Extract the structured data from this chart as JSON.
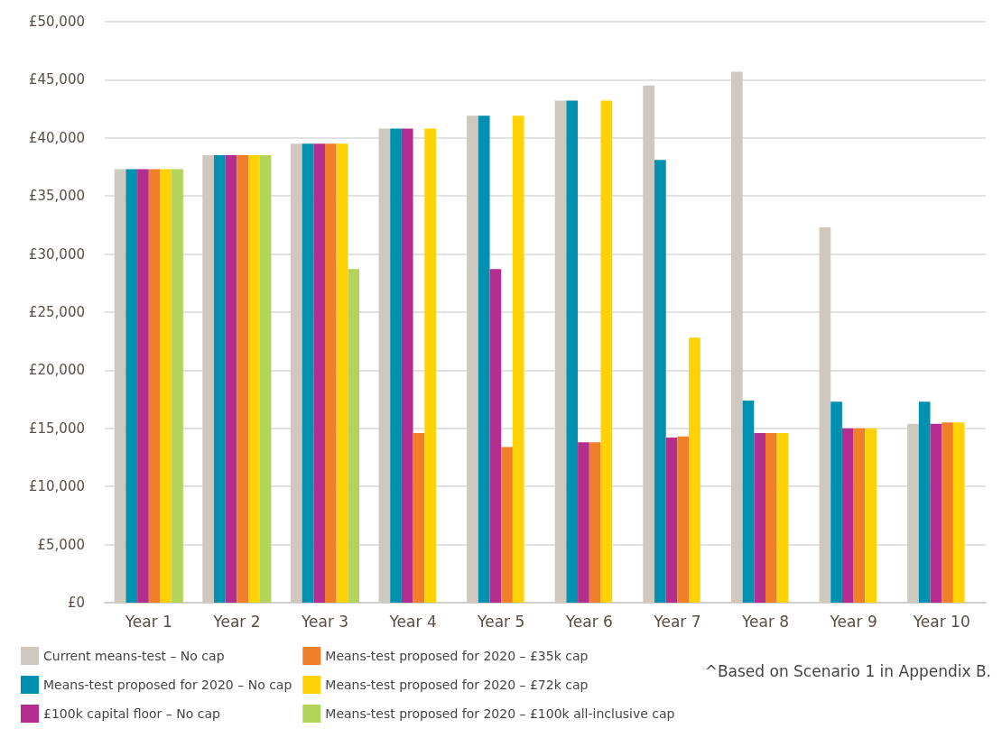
{
  "chart_data": {
    "type": "bar",
    "categories": [
      "Year 1",
      "Year 2",
      "Year 3",
      "Year 4",
      "Year 5",
      "Year 6",
      "Year 7",
      "Year 8",
      "Year 9",
      "Year 10"
    ],
    "series": [
      {
        "name": "Current means-test – No cap",
        "color": "#cfc8bf",
        "values": [
          37300,
          38500,
          39500,
          40800,
          41900,
          43200,
          44500,
          45700,
          32300,
          15400
        ]
      },
      {
        "name": "Means-test proposed for 2020 – No cap",
        "color": "#0090b0",
        "values": [
          37300,
          38500,
          39500,
          40800,
          41900,
          43200,
          38100,
          17400,
          17300,
          17300
        ]
      },
      {
        "name": "£100k capital floor – No cap",
        "color": "#b52e8f",
        "values": [
          37300,
          38500,
          39500,
          40800,
          28700,
          13800,
          14200,
          14600,
          15000,
          15400
        ]
      },
      {
        "name": "Means-test proposed for 2020 – £35k cap",
        "color": "#f07f2a",
        "values": [
          37300,
          38500,
          39500,
          14600,
          13400,
          13800,
          14300,
          14600,
          15000,
          15500
        ]
      },
      {
        "name": "Means-test proposed for 2020 – £72k cap",
        "color": "#fed206",
        "values": [
          37300,
          38500,
          39500,
          40800,
          41900,
          43200,
          22800,
          14600,
          15000,
          15500
        ]
      },
      {
        "name": "Means-test proposed for 2020 – £100k all-inclusive cap",
        "color": "#b2d45a",
        "values": [
          37300,
          38500,
          28700,
          null,
          null,
          null,
          null,
          null,
          null,
          null
        ]
      }
    ],
    "ylim": [
      0,
      50000
    ],
    "yticks": [
      {
        "value": 0,
        "label": "£0"
      },
      {
        "value": 5000,
        "label": "£5,000"
      },
      {
        "value": 10000,
        "label": "£10,000"
      },
      {
        "value": 15000,
        "label": "£15,000"
      },
      {
        "value": 20000,
        "label": "£20,000"
      },
      {
        "value": 25000,
        "label": "£25,000"
      },
      {
        "value": 30000,
        "label": "£30,000"
      },
      {
        "value": 35000,
        "label": "£35,000"
      },
      {
        "value": 40000,
        "label": "£40,000"
      },
      {
        "value": 45000,
        "label": "£45,000"
      },
      {
        "value": 50000,
        "label": "£50,000"
      }
    ],
    "grid": "y",
    "legend": "bottom",
    "annotations": [
      "^Based on Scenario 1 in Appendix B."
    ]
  }
}
